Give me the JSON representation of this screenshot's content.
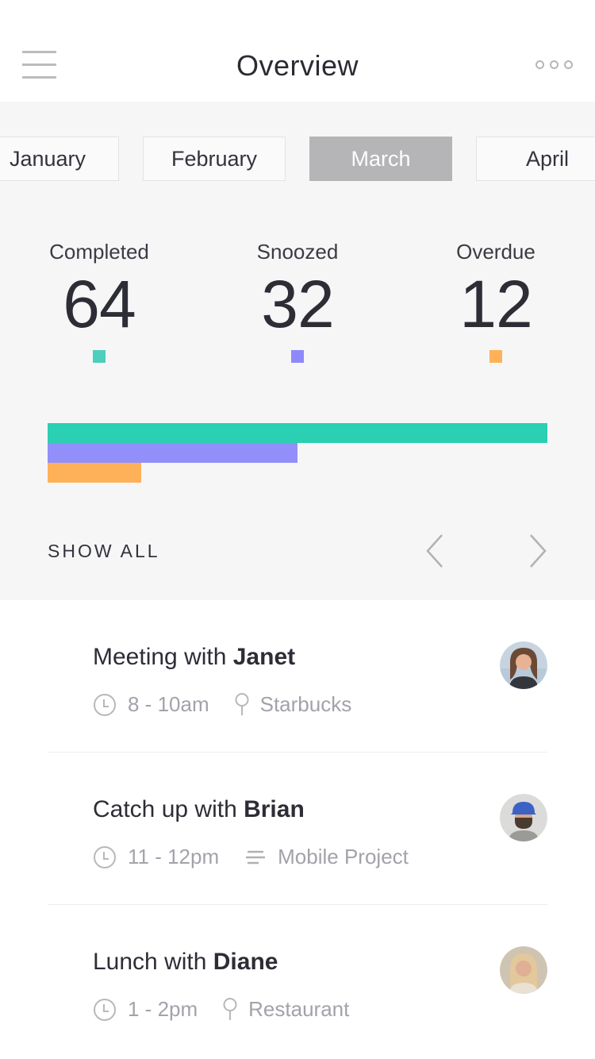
{
  "header": {
    "title": "Overview",
    "menu_icon": "hamburger-icon",
    "more_icon": "three-dots-icon"
  },
  "tabs": [
    {
      "label": "January",
      "selected": false
    },
    {
      "label": "February",
      "selected": false
    },
    {
      "label": "March",
      "selected": true
    },
    {
      "label": "April",
      "selected": false
    }
  ],
  "stats": [
    {
      "label": "Completed",
      "value": "64",
      "color": "#4ccfbd"
    },
    {
      "label": "Snoozed",
      "value": "32",
      "color": "#8e89fb"
    },
    {
      "label": "Overdue",
      "value": "12",
      "color": "#ffb15a"
    }
  ],
  "chart_data": {
    "type": "bar",
    "orientation": "horizontal",
    "categories": [
      "Completed",
      "Snoozed",
      "Overdue"
    ],
    "values": [
      64,
      32,
      12
    ],
    "colors": [
      "#2bcfb2",
      "#938ffa",
      "#ffb159"
    ],
    "xlim": [
      0,
      64
    ],
    "title": "",
    "xlabel": "",
    "ylabel": "",
    "grid": false,
    "legend": "none"
  },
  "show_all": {
    "label": "SHOW ALL",
    "prev_icon": "chevron-left-icon",
    "next_icon": "chevron-right-icon"
  },
  "agenda": [
    {
      "title_prefix": "Meeting with ",
      "person": "Janet",
      "time": "8 - 10am",
      "time_icon": "clock-icon",
      "detail": "Starbucks",
      "detail_icon": "location-pin-icon"
    },
    {
      "title_prefix": "Catch up with ",
      "person": "Brian",
      "time": "11 - 12pm",
      "time_icon": "clock-icon",
      "detail": "Mobile Project",
      "detail_icon": "list-icon"
    },
    {
      "title_prefix": "Lunch with ",
      "person": "Diane",
      "time": "1 - 2pm",
      "time_icon": "clock-icon",
      "detail": "Restaurant",
      "detail_icon": "location-pin-icon"
    }
  ]
}
